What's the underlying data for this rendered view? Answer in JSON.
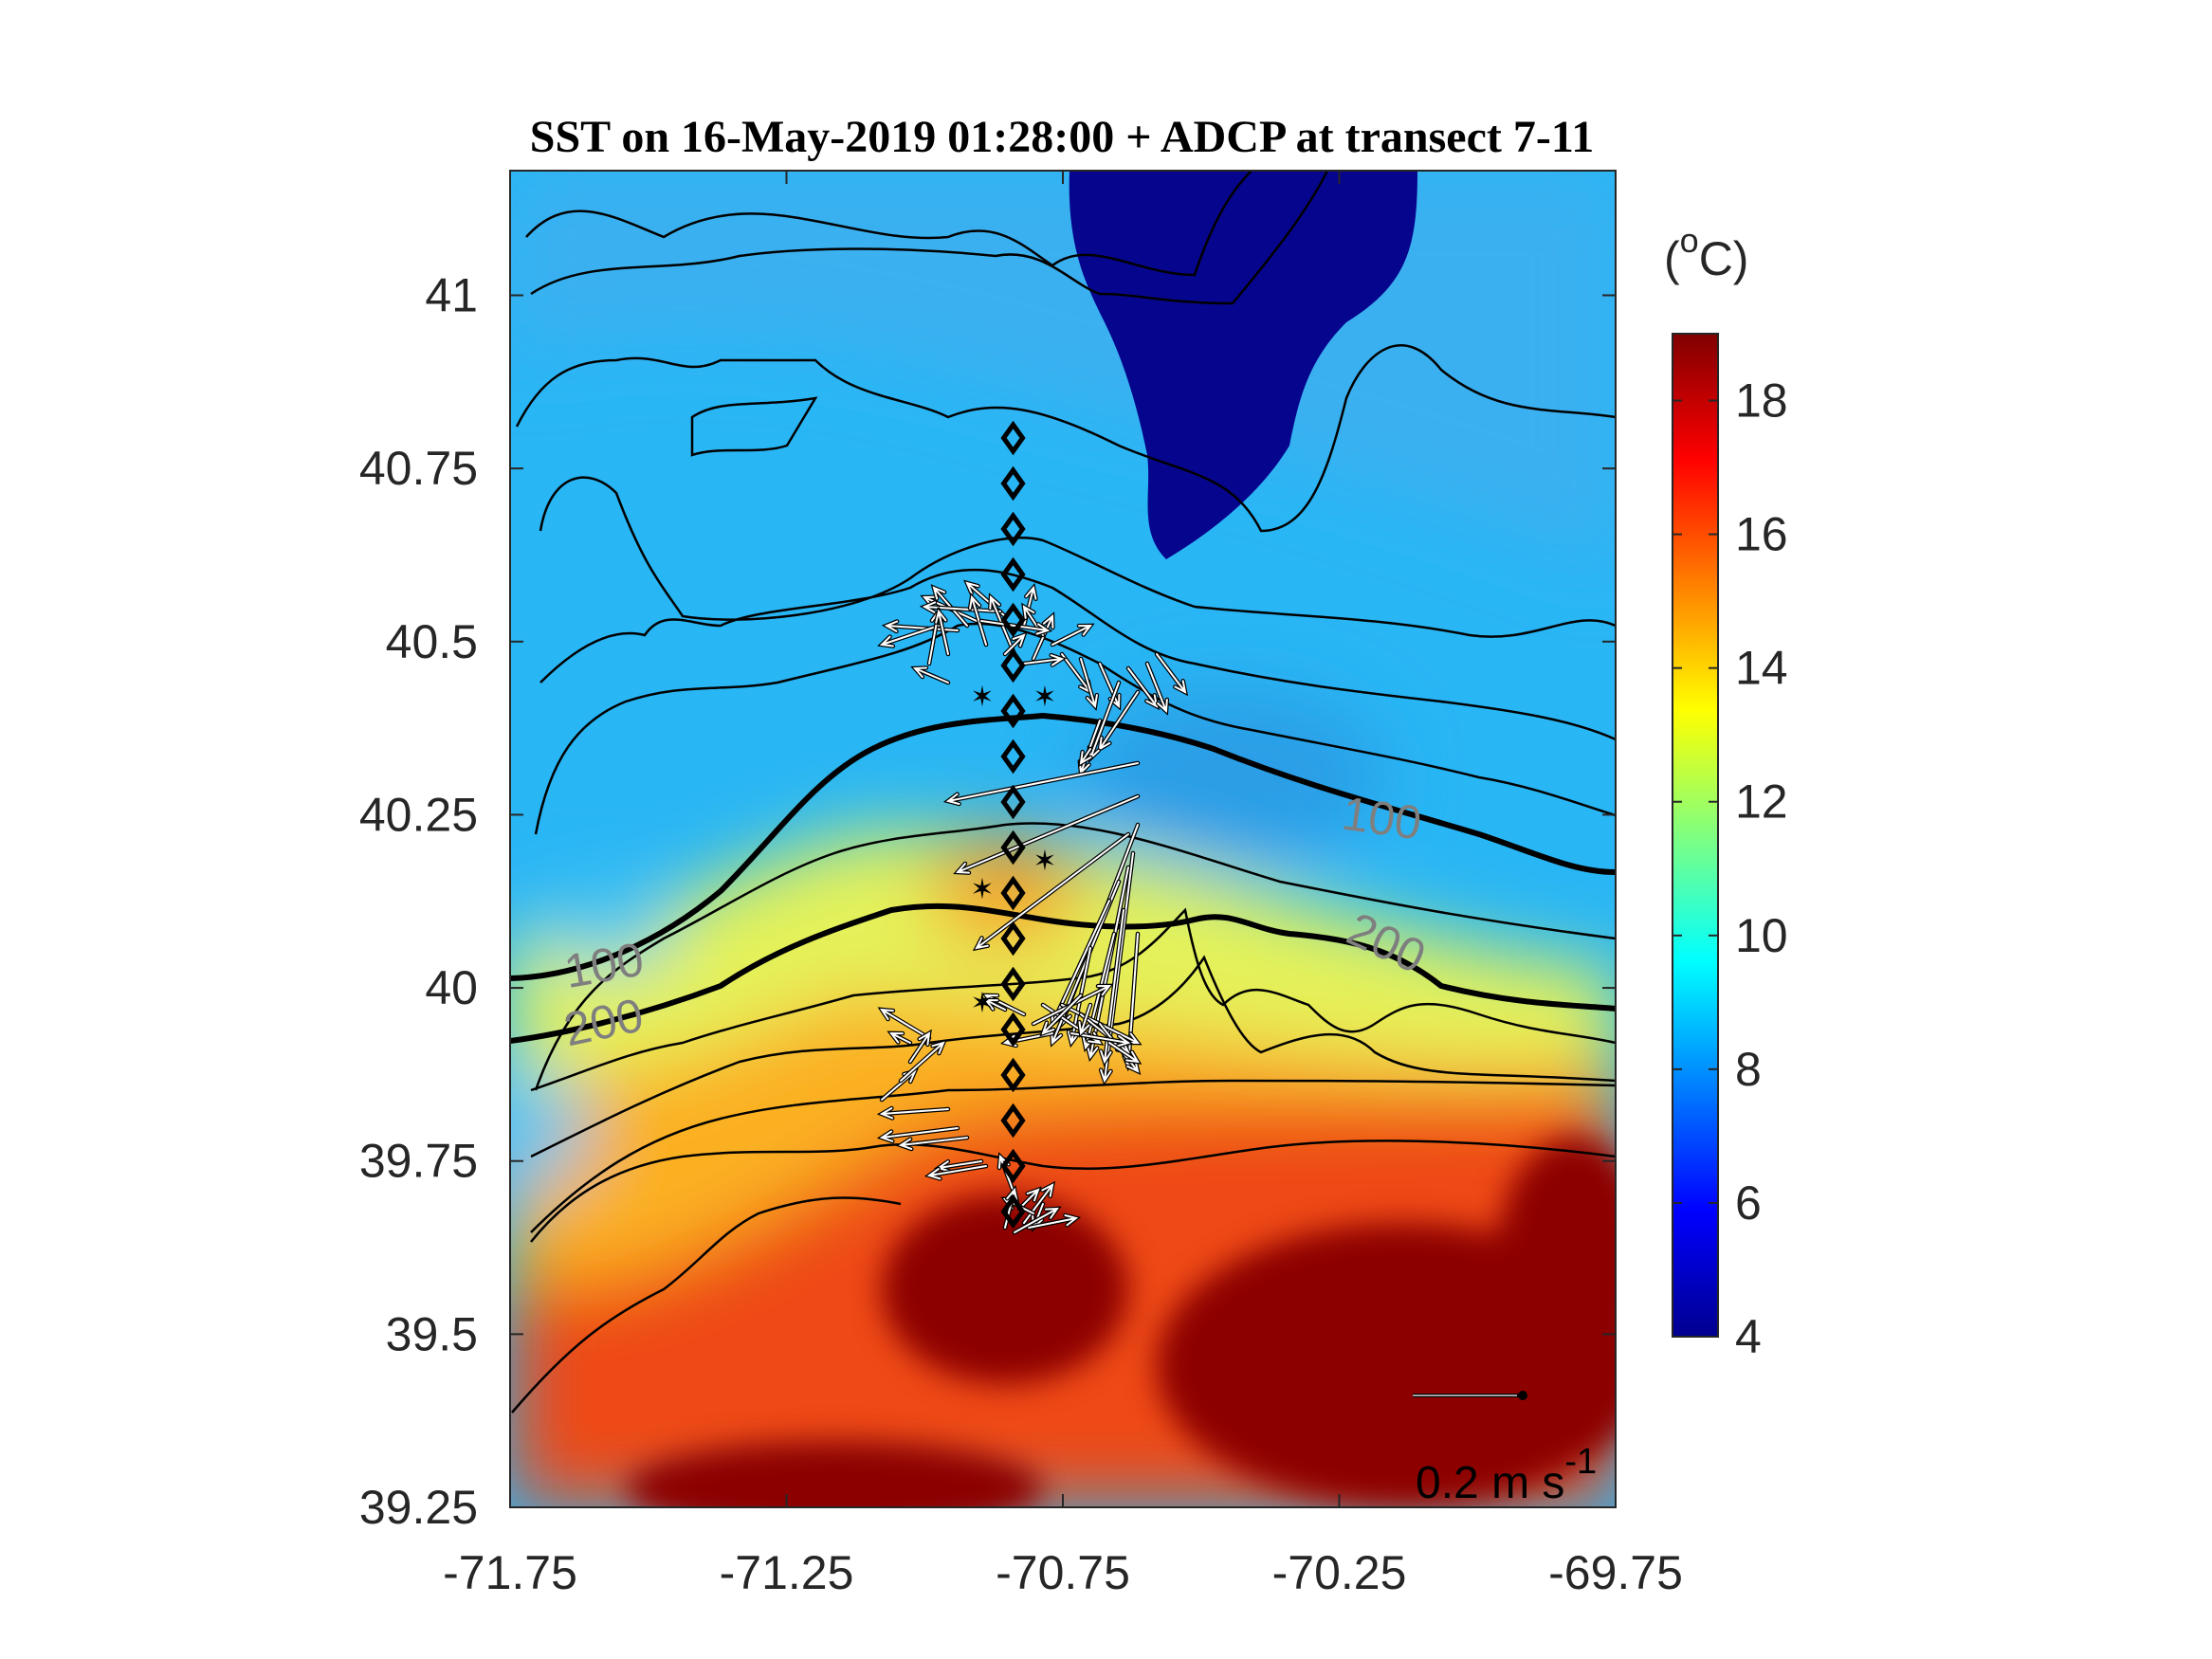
{
  "title": "SST on 16-May-2019 01:28:00 + ADCP at transect 7-11",
  "map": {
    "lon_range": [
      -71.75,
      -69.75
    ],
    "lat_range": [
      39.25,
      41.18
    ],
    "x_ticks": [
      "-71.75",
      "-71.25",
      "-70.75",
      "-70.25",
      "-69.75"
    ],
    "y_ticks": [
      "39.25",
      "39.5",
      "39.75",
      "40",
      "40.25",
      "40.5",
      "40.75",
      "41"
    ],
    "station_lon": -70.84
  },
  "colorbar": {
    "unit_prefix": "(",
    "unit_sup": "o",
    "unit_suffix": "C)",
    "ticks": [
      "4",
      "6",
      "8",
      "10",
      "12",
      "14",
      "16",
      "18"
    ],
    "range": [
      4,
      19
    ],
    "colormap": "jet"
  },
  "isobaths": [
    {
      "label": "100",
      "label2": "100"
    },
    {
      "label": "200",
      "label2": "200"
    }
  ],
  "scale_arrow": {
    "text": "0.2 m s",
    "sup": "-1"
  }
}
